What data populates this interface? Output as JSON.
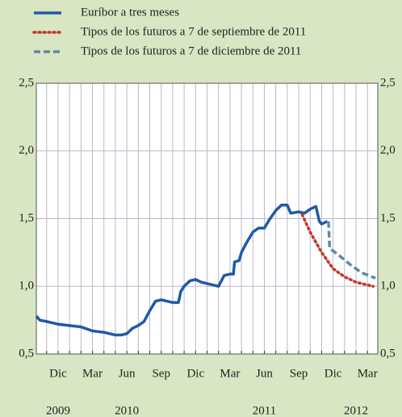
{
  "chart_data": {
    "type": "line",
    "series": [
      {
        "name": "Euríbor a tres meses",
        "color": "#1f5aa6",
        "style": "solid",
        "x": [
          9.1,
          9.4,
          10,
          11,
          12,
          13,
          14,
          15,
          16,
          16.5,
          17,
          17.5,
          18,
          18.5,
          19,
          19.5,
          20,
          20.5,
          21,
          21.5,
          21.7,
          22,
          22.5,
          23,
          23.5,
          24,
          24.5,
          25,
          25.5,
          26,
          26.3,
          26.4,
          26.8,
          27,
          27.5,
          28,
          28.5,
          29,
          29.5,
          30,
          30.5,
          31,
          31.3,
          32,
          32.5,
          33,
          33.5,
          33.8,
          34,
          34.5
        ],
        "values": [
          0.78,
          0.75,
          0.74,
          0.72,
          0.71,
          0.7,
          0.67,
          0.66,
          0.64,
          0.64,
          0.65,
          0.69,
          0.71,
          0.74,
          0.82,
          0.89,
          0.9,
          0.89,
          0.88,
          0.88,
          0.96,
          1.0,
          1.04,
          1.05,
          1.03,
          1.02,
          1.01,
          1.0,
          1.08,
          1.09,
          1.09,
          1.18,
          1.19,
          1.25,
          1.33,
          1.4,
          1.43,
          1.43,
          1.5,
          1.56,
          1.6,
          1.6,
          1.54,
          1.55,
          1.54,
          1.57,
          1.59,
          1.48,
          1.46,
          1.48
        ]
      },
      {
        "name": "Tipos de los futuros a 7 de septiembre de 2011",
        "color": "#c0392b",
        "style": "dotted",
        "x": [
          32.3,
          33,
          34,
          35,
          36,
          37,
          38,
          38.5
        ],
        "values": [
          1.53,
          1.4,
          1.25,
          1.13,
          1.07,
          1.03,
          1.01,
          1.0
        ]
      },
      {
        "name": "Tipos de los futuros a 7 de diciembre de 2011",
        "color": "#5a8aa8",
        "style": "dashed",
        "x": [
          34.6,
          34.7,
          35.5,
          36.5,
          37.5,
          38.7
        ],
        "values": [
          1.48,
          1.28,
          1.23,
          1.16,
          1.1,
          1.06
        ]
      }
    ],
    "xlim": [
      9.1,
      38.9
    ],
    "xticks": [
      {
        "value": 11,
        "label": "Dic"
      },
      {
        "value": 14,
        "label": "Mar"
      },
      {
        "value": 17,
        "label": "Jun"
      },
      {
        "value": 20,
        "label": "Sep"
      },
      {
        "value": 23,
        "label": "Dic"
      },
      {
        "value": 26,
        "label": "Mar"
      },
      {
        "value": 29,
        "label": "Jun"
      },
      {
        "value": 32,
        "label": "Sep"
      },
      {
        "value": 35,
        "label": "Dic"
      },
      {
        "value": 38,
        "label": "Mar"
      }
    ],
    "year_labels": [
      {
        "value": 11,
        "label": "2009"
      },
      {
        "value": 17,
        "label": "2010"
      },
      {
        "value": 29,
        "label": "2011"
      },
      {
        "value": 37,
        "label": "2012"
      }
    ],
    "x_gridlines": [
      10,
      11,
      12,
      13,
      14,
      15,
      16,
      17,
      18,
      19,
      20,
      21,
      22,
      23,
      24,
      25,
      26,
      27,
      28,
      29,
      30,
      31,
      32,
      33,
      34,
      35,
      36,
      37,
      38
    ],
    "ylim": [
      0.5,
      2.5
    ],
    "yticks": [
      {
        "value": 0.5,
        "label": "0,5"
      },
      {
        "value": 1.0,
        "label": "1,0"
      },
      {
        "value": 1.5,
        "label": "1,5"
      },
      {
        "value": 2.0,
        "label": "2,0"
      },
      {
        "value": 2.5,
        "label": "2,5"
      }
    ],
    "grid": true,
    "legend": "top-left"
  }
}
